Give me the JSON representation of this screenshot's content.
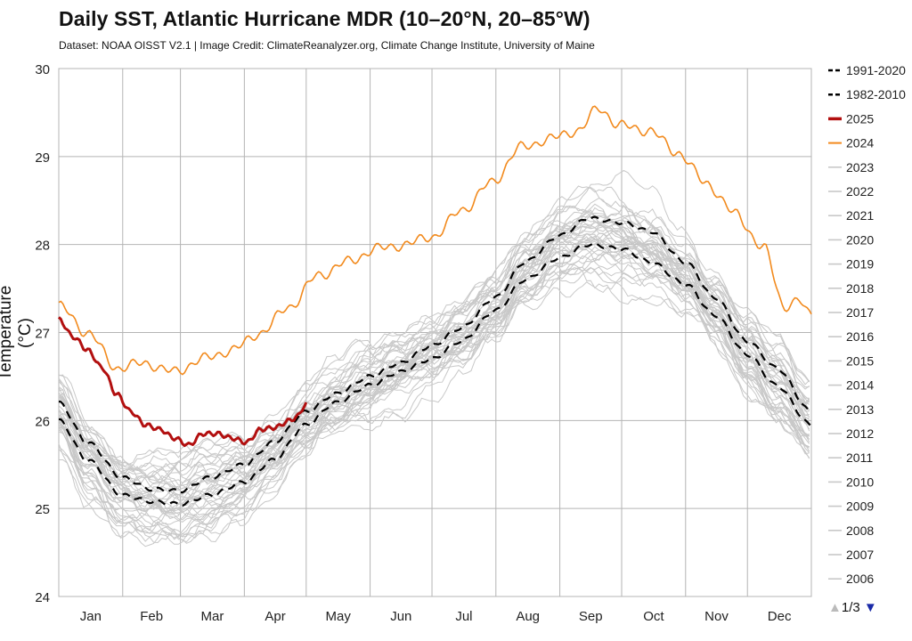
{
  "title": "Daily SST, Atlantic Hurricane MDR (10–20°N, 20–85°W)",
  "subtitle": "Dataset: NOAA OISST V2.1 | Image Credit: ClimateReanalyzer.org, Climate Change Institute, University of Maine",
  "legend": {
    "page_indicator": "1/3",
    "up_arrow": "▲",
    "down_arrow": "▼"
  },
  "colors": {
    "clim_1991_2020": "#000000",
    "clim_1982_2010": "#000000",
    "y2025": "#b20f0f",
    "y2024": "#f28a1d",
    "other_years": "#c8c8c8",
    "grid": "#b4b4b4"
  },
  "chart_data": {
    "type": "line",
    "title": "Daily SST, Atlantic Hurricane MDR (10–20°N, 20–85°W)",
    "ylabel": "Temperature (°C)",
    "xlabel": "",
    "ylim": [
      24,
      30
    ],
    "yticks": [
      24,
      25,
      26,
      27,
      28,
      29,
      30
    ],
    "x_unit": "day of year",
    "xlim": [
      1,
      366
    ],
    "months": [
      "Jan",
      "Feb",
      "Mar",
      "Apr",
      "May",
      "Jun",
      "Jul",
      "Aug",
      "Sep",
      "Oct",
      "Nov",
      "Dec"
    ],
    "grid": true,
    "legend_position": "right",
    "series": [
      {
        "name": "1991-2020",
        "style": "dashed",
        "width": 2.2,
        "x": [
          1,
          15,
          32,
          46,
          60,
          74,
          91,
          105,
          121,
          135,
          152,
          166,
          182,
          196,
          213,
          227,
          244,
          258,
          274,
          288,
          305,
          319,
          335,
          349,
          366
        ],
        "y": [
          26.2,
          25.75,
          25.35,
          25.22,
          25.2,
          25.35,
          25.5,
          25.75,
          26.1,
          26.3,
          26.5,
          26.65,
          26.85,
          27.05,
          27.4,
          27.8,
          28.1,
          28.3,
          28.25,
          28.15,
          27.8,
          27.4,
          26.9,
          26.6,
          26.1
        ]
      },
      {
        "name": "1982-2010",
        "style": "dashed",
        "width": 2.2,
        "x": [
          1,
          15,
          32,
          46,
          60,
          74,
          91,
          105,
          121,
          135,
          152,
          166,
          182,
          196,
          213,
          227,
          244,
          258,
          274,
          288,
          305,
          319,
          335,
          349,
          366
        ],
        "y": [
          26.0,
          25.55,
          25.15,
          25.08,
          25.05,
          25.15,
          25.3,
          25.55,
          25.95,
          26.2,
          26.4,
          26.55,
          26.7,
          26.9,
          27.25,
          27.6,
          27.85,
          28.0,
          27.95,
          27.8,
          27.55,
          27.2,
          26.75,
          26.4,
          25.95
        ]
      },
      {
        "name": "2025",
        "style": "solid",
        "width": 3,
        "x": [
          1,
          8,
          15,
          22,
          29,
          36,
          43,
          50,
          57,
          64,
          71,
          78,
          85,
          92,
          99,
          106,
          113,
          117,
          121
        ],
        "y": [
          27.15,
          26.95,
          26.8,
          26.6,
          26.3,
          26.1,
          25.95,
          25.9,
          25.8,
          25.72,
          25.85,
          25.85,
          25.8,
          25.75,
          25.9,
          25.92,
          26.0,
          26.05,
          26.2
        ]
      },
      {
        "name": "2024",
        "style": "solid",
        "width": 1.6,
        "x": [
          1,
          15,
          29,
          43,
          57,
          71,
          85,
          99,
          113,
          127,
          141,
          155,
          169,
          183,
          197,
          211,
          225,
          239,
          253,
          263,
          273,
          287,
          301,
          315,
          329,
          343,
          353,
          360,
          366
        ],
        "y": [
          27.3,
          27.0,
          26.6,
          26.65,
          26.55,
          26.7,
          26.8,
          27.0,
          27.3,
          27.65,
          27.8,
          27.95,
          28.0,
          28.1,
          28.4,
          28.7,
          29.1,
          29.2,
          29.3,
          29.55,
          29.35,
          29.3,
          29.05,
          28.7,
          28.35,
          27.95,
          27.3,
          27.35,
          27.2
        ]
      },
      {
        "name": "2023",
        "style": "solid",
        "width": 1
      },
      {
        "name": "2022",
        "style": "solid",
        "width": 1
      },
      {
        "name": "2021",
        "style": "solid",
        "width": 1
      },
      {
        "name": "2020",
        "style": "solid",
        "width": 1
      },
      {
        "name": "2019",
        "style": "solid",
        "width": 1
      },
      {
        "name": "2018",
        "style": "solid",
        "width": 1
      },
      {
        "name": "2017",
        "style": "solid",
        "width": 1
      },
      {
        "name": "2016",
        "style": "solid",
        "width": 1
      },
      {
        "name": "2015",
        "style": "solid",
        "width": 1
      },
      {
        "name": "2014",
        "style": "solid",
        "width": 1
      },
      {
        "name": "2013",
        "style": "solid",
        "width": 1
      },
      {
        "name": "2012",
        "style": "solid",
        "width": 1
      },
      {
        "name": "2011",
        "style": "solid",
        "width": 1
      },
      {
        "name": "2010",
        "style": "solid",
        "width": 1
      },
      {
        "name": "2009",
        "style": "solid",
        "width": 1
      },
      {
        "name": "2008",
        "style": "solid",
        "width": 1
      },
      {
        "name": "2007",
        "style": "solid",
        "width": 1
      },
      {
        "name": "2006",
        "style": "solid",
        "width": 1
      }
    ],
    "other_years_ensemble": {
      "count": 42,
      "color": "#c8c8c8",
      "x": [
        1,
        15,
        32,
        46,
        60,
        74,
        91,
        105,
        121,
        135,
        152,
        166,
        182,
        196,
        213,
        227,
        244,
        258,
        274,
        288,
        305,
        319,
        335,
        349,
        366
      ],
      "mean": [
        26.1,
        25.6,
        25.25,
        25.15,
        25.12,
        25.25,
        25.4,
        25.65,
        26.0,
        26.25,
        26.45,
        26.6,
        26.8,
        27.0,
        27.3,
        27.7,
        28.0,
        28.15,
        28.1,
        27.95,
        27.65,
        27.3,
        26.8,
        26.45,
        26.0
      ],
      "spread": [
        0.5,
        0.55,
        0.6,
        0.6,
        0.6,
        0.6,
        0.55,
        0.5,
        0.5,
        0.5,
        0.55,
        0.55,
        0.55,
        0.55,
        0.55,
        0.6,
        0.65,
        0.7,
        0.75,
        0.7,
        0.65,
        0.6,
        0.55,
        0.55,
        0.55
      ]
    }
  }
}
